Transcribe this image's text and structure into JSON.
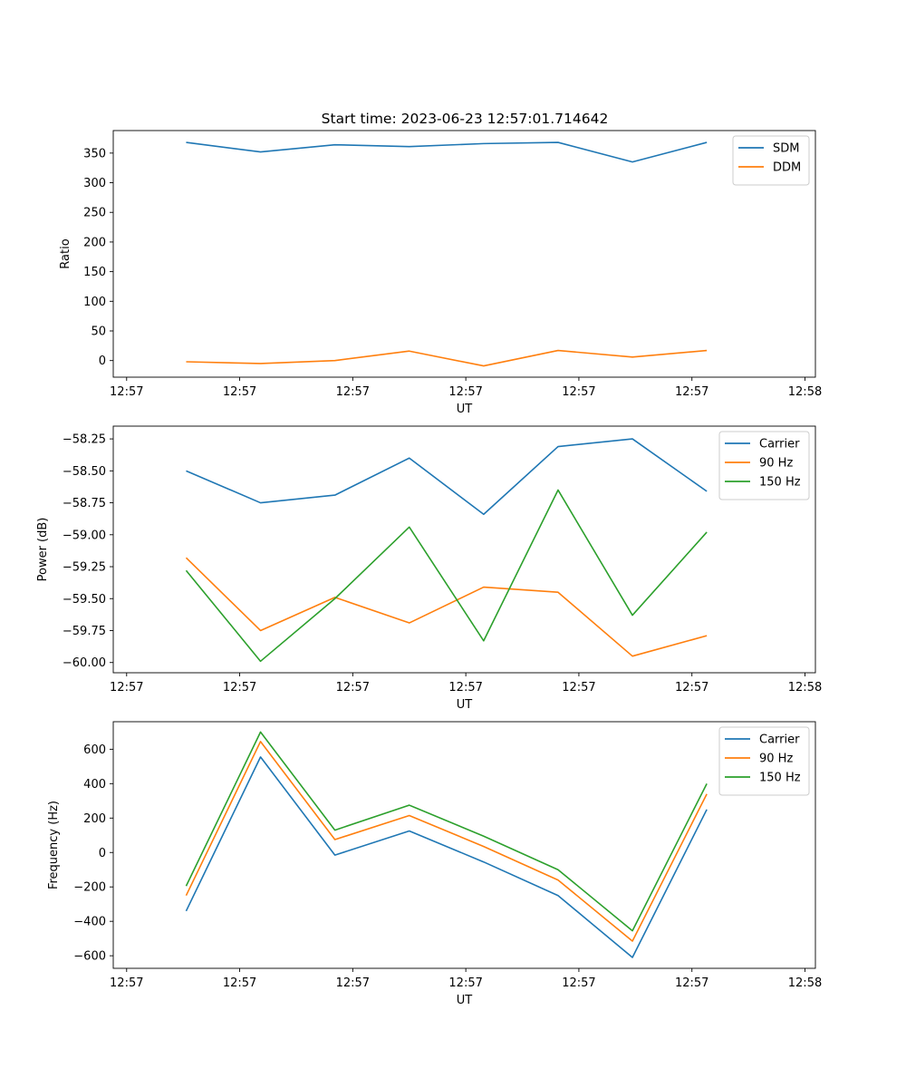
{
  "figure_title": "Start time: 2023-06-23 12:57:01.714642",
  "colors": {
    "blue": "#1f77b4",
    "orange": "#ff7f0e",
    "green": "#2ca02c"
  },
  "chart_data": [
    {
      "type": "line",
      "xlabel": "UT",
      "ylabel": "Ratio",
      "x": [
        1,
        2,
        3,
        4,
        5,
        6,
        7,
        8
      ],
      "x_tick_values": [
        0.2,
        1.72,
        3.24,
        4.76,
        6.28,
        7.8,
        9.32
      ],
      "x_tick_labels": [
        "12:57",
        "12:57",
        "12:57",
        "12:57",
        "12:57",
        "12:57",
        "12:58"
      ],
      "xlim": [
        0.02,
        9.46
      ],
      "ylim": [
        -28,
        388
      ],
      "y_ticks": [
        0,
        50,
        100,
        150,
        200,
        250,
        300,
        350
      ],
      "y_tick_labels": [
        "0",
        "50",
        "100",
        "150",
        "200",
        "250",
        "300",
        "350"
      ],
      "legend": "top-right",
      "grid": false,
      "series": [
        {
          "name": "SDM",
          "color": "#1f77b4",
          "values": [
            368,
            352,
            364,
            361,
            366,
            368,
            335,
            368
          ]
        },
        {
          "name": "DDM",
          "color": "#ff7f0e",
          "values": [
            -2,
            -5,
            0,
            16,
            -9,
            17,
            6,
            17
          ]
        }
      ]
    },
    {
      "type": "line",
      "xlabel": "UT",
      "ylabel": "Power (dB)",
      "x": [
        1,
        2,
        3,
        4,
        5,
        6,
        7,
        8
      ],
      "x_tick_values": [
        0.2,
        1.72,
        3.24,
        4.76,
        6.28,
        7.8,
        9.32
      ],
      "x_tick_labels": [
        "12:57",
        "12:57",
        "12:57",
        "12:57",
        "12:57",
        "12:57",
        "12:58"
      ],
      "xlim": [
        0.02,
        9.46
      ],
      "ylim": [
        -60.08,
        -58.15
      ],
      "y_ticks": [
        -60.0,
        -59.75,
        -59.5,
        -59.25,
        -59.0,
        -58.75,
        -58.5,
        -58.25
      ],
      "y_tick_labels": [
        "−60.00",
        "−59.75",
        "−59.50",
        "−59.25",
        "−59.00",
        "−58.75",
        "−58.50",
        "−58.25"
      ],
      "legend": "top-right",
      "grid": false,
      "series": [
        {
          "name": "Carrier",
          "color": "#1f77b4",
          "values": [
            -58.5,
            -58.75,
            -58.69,
            -58.4,
            -58.84,
            -58.31,
            -58.25,
            -58.66
          ]
        },
        {
          "name": "90 Hz",
          "color": "#ff7f0e",
          "values": [
            -59.18,
            -59.75,
            -59.49,
            -59.69,
            -59.41,
            -59.45,
            -59.95,
            -59.79
          ]
        },
        {
          "name": "150 Hz",
          "color": "#2ca02c",
          "values": [
            -59.28,
            -59.99,
            -59.5,
            -58.94,
            -59.83,
            -58.65,
            -59.63,
            -58.98
          ]
        }
      ]
    },
    {
      "type": "line",
      "xlabel": "UT",
      "ylabel": "Frequency (Hz)",
      "x": [
        1,
        2,
        3,
        4,
        5,
        6,
        7,
        8
      ],
      "x_tick_values": [
        0.2,
        1.72,
        3.24,
        4.76,
        6.28,
        7.8,
        9.32
      ],
      "x_tick_labels": [
        "12:57",
        "12:57",
        "12:57",
        "12:57",
        "12:57",
        "12:57",
        "12:58"
      ],
      "xlim": [
        0.02,
        9.46
      ],
      "ylim": [
        -673,
        760
      ],
      "y_ticks": [
        -600,
        -400,
        -200,
        0,
        200,
        400,
        600
      ],
      "y_tick_labels": [
        "−600",
        "−400",
        "−200",
        "0",
        "200",
        "400",
        "600"
      ],
      "legend": "top-right",
      "grid": false,
      "series": [
        {
          "name": "Carrier",
          "color": "#1f77b4",
          "values": [
            -340,
            555,
            -15,
            125,
            -55,
            -250,
            -610,
            250
          ]
        },
        {
          "name": "90 Hz",
          "color": "#ff7f0e",
          "values": [
            -250,
            645,
            75,
            215,
            35,
            -160,
            -515,
            340
          ]
        },
        {
          "name": "150 Hz",
          "color": "#2ca02c",
          "values": [
            -195,
            700,
            130,
            275,
            95,
            -100,
            -455,
            400
          ]
        }
      ]
    }
  ]
}
